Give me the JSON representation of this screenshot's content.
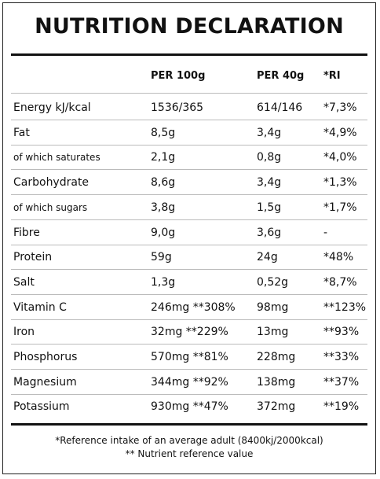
{
  "title": "NUTRITION DECLARATION",
  "table": {
    "header": [
      "PER 100g",
      "PER 40g",
      "*RI"
    ],
    "rows": [
      [
        "Energy kJ/kcal",
        "1536/365",
        "614/146",
        "*7,3%"
      ],
      [
        "Fat",
        "8,5g",
        "3,4g",
        "*4,9%"
      ],
      [
        "of which saturates",
        "2,1g",
        "0,8g",
        "*4,0%"
      ],
      [
        "Carbohydrate",
        "8,6g",
        "3,4g",
        "*1,3%"
      ],
      [
        "of which sugars",
        "3,8g",
        "1,5g",
        "*1,7%"
      ],
      [
        "Fibre",
        "9,0g",
        "3,6g",
        "-"
      ],
      [
        "Protein",
        "59g",
        "24g",
        "*48%"
      ],
      [
        "Salt",
        "1,3g",
        "0,52g",
        "*8,7%"
      ],
      [
        "Vitamin C",
        "246mg **308%",
        "98mg",
        "**123%"
      ],
      [
        "Iron",
        "32mg **229%",
        "13mg",
        "**93%"
      ],
      [
        "Phosphorus",
        "570mg **81%",
        "228mg",
        "**33%"
      ],
      [
        "Magnesium",
        "344mg **92%",
        "138mg",
        "**37%"
      ],
      [
        "Potassium",
        "930mg **47%",
        "372mg",
        "**19%"
      ]
    ]
  },
  "footnotes": [
    "*Reference intake of an average adult (8400kj/2000kcal)",
    "** Nutrient reference value"
  ]
}
